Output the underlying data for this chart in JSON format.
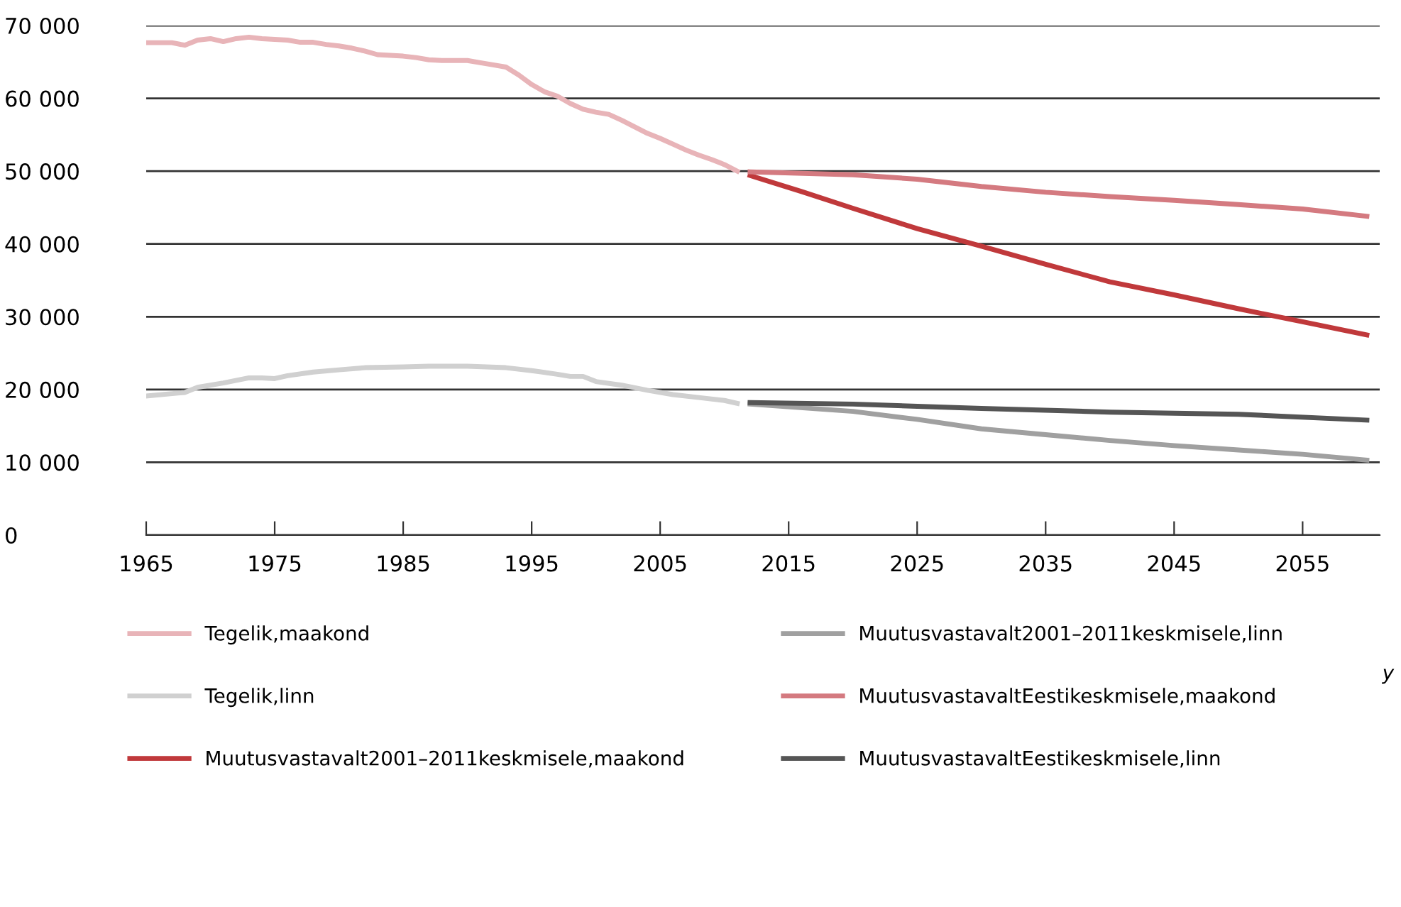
{
  "chart_data": {
    "type": "line",
    "xlim": [
      1965,
      2061
    ],
    "xticks": [
      1965,
      1975,
      1985,
      1995,
      2005,
      2015,
      2025,
      2035,
      2045,
      2055
    ],
    "ylim": [
      0,
      70000
    ],
    "yticks": [
      0,
      {
        "value": 10000,
        "label": "10 000"
      },
      {
        "value": 20000,
        "label": "20 000"
      },
      {
        "value": 30000,
        "label": "30 000"
      },
      {
        "value": 40000,
        "label": "40 000"
      },
      {
        "value": 50000,
        "label": "50 000"
      },
      {
        "value": 60000,
        "label": "60 000"
      },
      {
        "value": 70000,
        "label": "70 000"
      }
    ],
    "grid": "y",
    "legend": "bottom",
    "marker": "none",
    "line_style": "solid",
    "annotations": [
      "y"
    ],
    "series": [
      {
        "name": "Tegelik,maakond",
        "color": "#e8b4b8",
        "x": [
          1965,
          1967,
          1968,
          1969,
          1970,
          1971,
          1972,
          1973,
          1974,
          1975,
          1976,
          1977,
          1978,
          1979,
          1980,
          1981,
          1982,
          1983,
          1984,
          1985,
          1986,
          1987,
          1988,
          1989,
          1990,
          1991,
          1992,
          1993,
          1994,
          1995,
          1996,
          1997,
          1998,
          1999,
          2000,
          2001,
          2002,
          2003,
          2004,
          2005,
          2006,
          2007,
          2008,
          2009,
          2010,
          2011
        ],
        "values": [
          67650,
          67650,
          67300,
          68000,
          68200,
          67800,
          68200,
          68400,
          68200,
          68100,
          68000,
          67700,
          67700,
          67400,
          67200,
          66900,
          66500,
          66000,
          65900,
          65800,
          65600,
          65300,
          65200,
          65200,
          65200,
          64900,
          64600,
          64300,
          63200,
          61900,
          60900,
          60300,
          59300,
          58500,
          58100,
          57800,
          57000,
          56100,
          55200,
          54500,
          53700,
          52900,
          52200,
          51600,
          50900,
          50000
        ]
      },
      {
        "name": "Tegelik,linn",
        "color": "#d0d0d0",
        "x": [
          1965,
          1968,
          1969,
          1971,
          1973,
          1974,
          1975,
          1976,
          1978,
          1980,
          1982,
          1985,
          1987,
          1990,
          1993,
          1995,
          1997,
          1998,
          1999,
          2000,
          2002,
          2004,
          2006,
          2008,
          2010,
          2011
        ],
        "values": [
          19100,
          19600,
          20300,
          20900,
          21600,
          21600,
          21500,
          21900,
          22400,
          22700,
          23000,
          23100,
          23200,
          23200,
          23000,
          22600,
          22100,
          21800,
          21800,
          21100,
          20600,
          19900,
          19300,
          18900,
          18500,
          18100
        ]
      },
      {
        "name": "Muutusvastavalt2001–2011keskmisele,maakond",
        "color": "#c0393b",
        "x": [
          2012,
          2016,
          2020,
          2025,
          2030,
          2035,
          2040,
          2045,
          2050,
          2055,
          2060
        ],
        "values": [
          49400,
          47200,
          44900,
          42100,
          39700,
          37200,
          34800,
          33000,
          31100,
          29300,
          27500
        ]
      },
      {
        "name": "Muutusvastavalt2001–2011keskmisele,linn",
        "color": "#a0a0a0",
        "x": [
          2012,
          2020,
          2025,
          2030,
          2035,
          2040,
          2045,
          2050,
          2055,
          2060
        ],
        "values": [
          18000,
          17000,
          15900,
          14600,
          13800,
          13000,
          12300,
          11700,
          11100,
          10300
        ]
      },
      {
        "name": "MuutusvastavaltEestikeskmisele,maakond",
        "color": "#d47a80",
        "x": [
          2012,
          2020,
          2025,
          2030,
          2035,
          2040,
          2045,
          2050,
          2055,
          2060
        ],
        "values": [
          49900,
          49500,
          48900,
          47900,
          47100,
          46500,
          46000,
          45400,
          44800,
          43800
        ]
      },
      {
        "name": "MuutusvastavaltEestikeskmisele,linn",
        "color": "#555555",
        "x": [
          2012,
          2020,
          2030,
          2040,
          2050,
          2060
        ],
        "values": [
          18200,
          18000,
          17400,
          16900,
          16600,
          15800
        ]
      }
    ]
  }
}
